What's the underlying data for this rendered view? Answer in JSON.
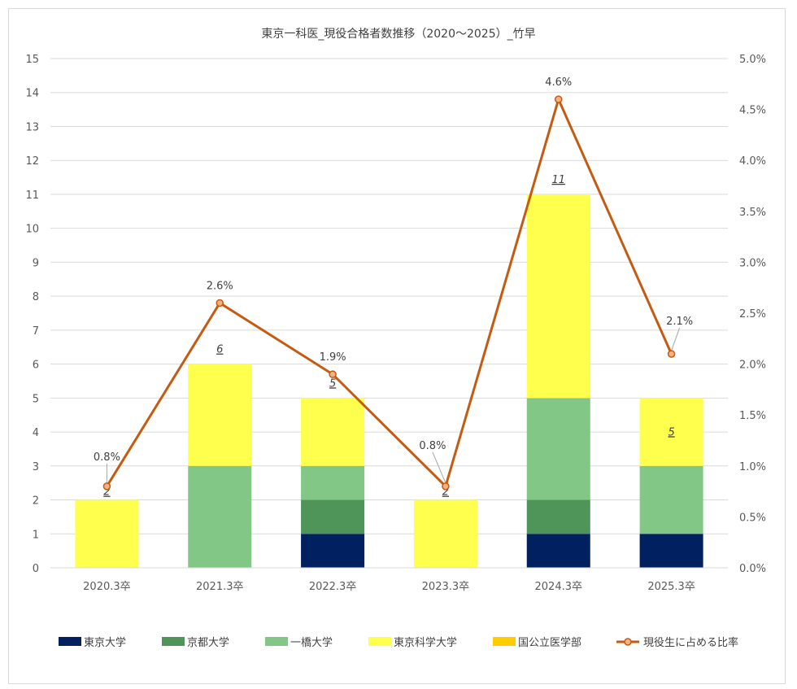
{
  "chart_data": {
    "type": "bar",
    "stacked": true,
    "title": "東京一科医_現役合格者数推移（2020～2025）_竹早",
    "categories": [
      "2020.3卒",
      "2021.3卒",
      "2022.3卒",
      "2023.3卒",
      "2024.3卒",
      "2025.3卒"
    ],
    "series": [
      {
        "name": "東京大学",
        "values": [
          0,
          0,
          1,
          0,
          1,
          1
        ],
        "color": "#002060"
      },
      {
        "name": "京都大学",
        "values": [
          0,
          0,
          1,
          0,
          1,
          0
        ],
        "color": "#4f9459"
      },
      {
        "name": "一橋大学",
        "values": [
          0,
          3,
          1,
          0,
          3,
          2
        ],
        "color": "#82c785"
      },
      {
        "name": "東京科学大学",
        "values": [
          2,
          3,
          2,
          2,
          6,
          2
        ],
        "color": "#ffff4d"
      },
      {
        "name": "国公立医学部",
        "values": [
          0,
          0,
          0,
          0,
          0,
          0
        ],
        "color": "#ffcc00"
      }
    ],
    "totals": [
      "2",
      "6",
      "5",
      "2",
      "11",
      "5"
    ],
    "line_series": {
      "name": "現役生に占める比率",
      "values": [
        0.8,
        2.6,
        1.9,
        0.8,
        4.6,
        2.1
      ],
      "labels": [
        "0.8%",
        "2.6%",
        "1.9%",
        "0.8%",
        "4.6%",
        "2.1%"
      ],
      "color": "#c55a11",
      "marker_fill": "#f4b183"
    },
    "ylim": [
      0,
      15
    ],
    "y2lim": [
      0,
      5
    ],
    "yticks": [
      "0",
      "1",
      "2",
      "3",
      "4",
      "5",
      "6",
      "7",
      "8",
      "9",
      "10",
      "11",
      "12",
      "13",
      "14",
      "15"
    ],
    "y2ticks": [
      "0.0%",
      "0.5%",
      "1.0%",
      "1.5%",
      "2.0%",
      "2.5%",
      "3.0%",
      "3.5%",
      "4.0%",
      "4.5%",
      "5.0%"
    ],
    "grid": true,
    "legend_position": "bottom"
  }
}
